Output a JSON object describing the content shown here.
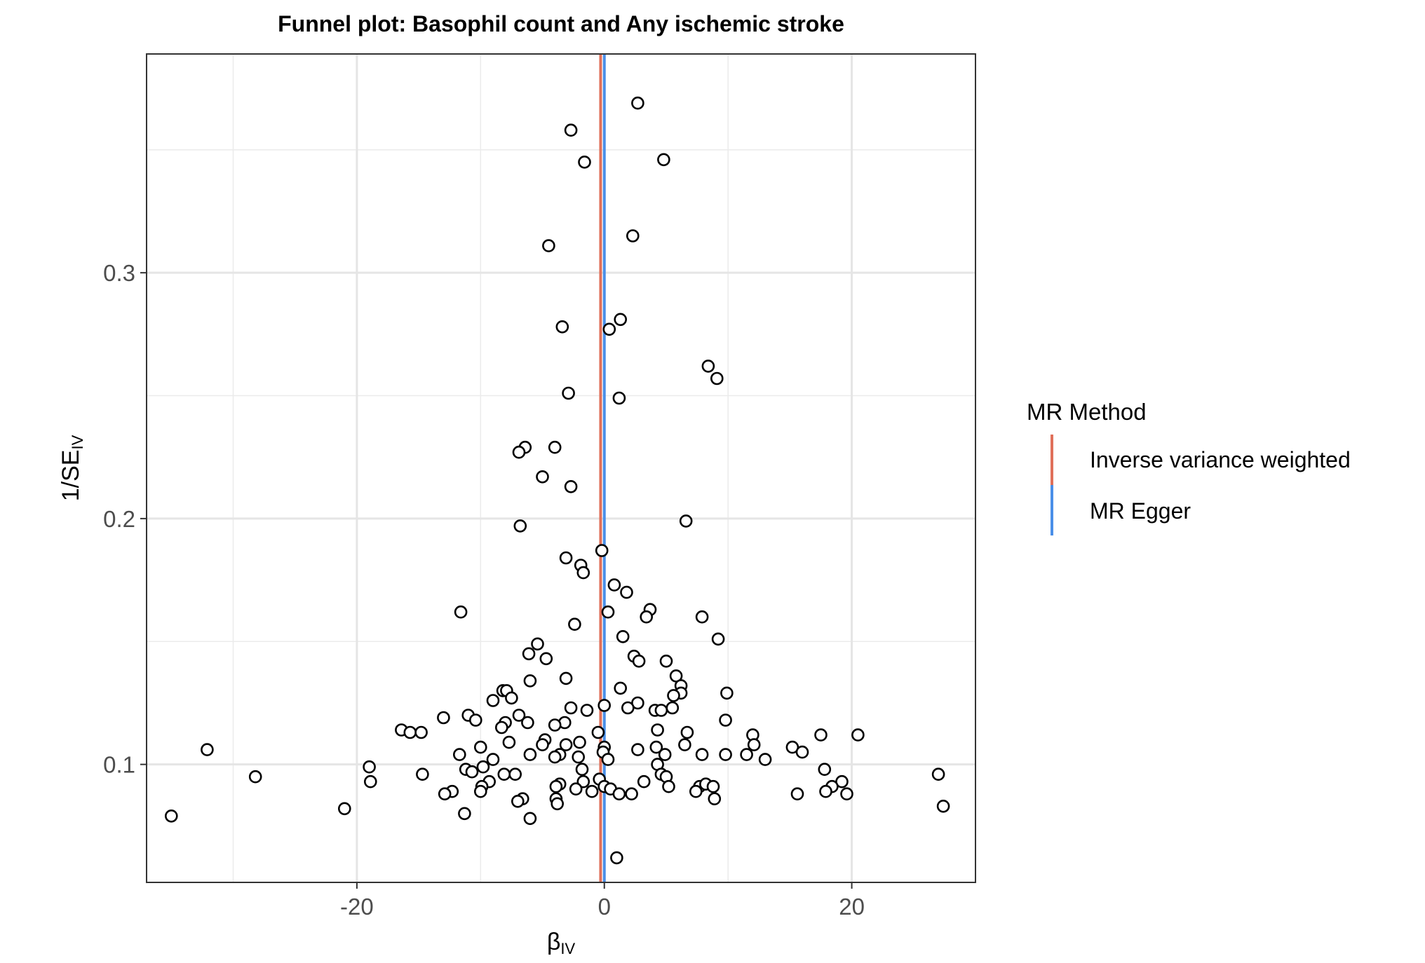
{
  "chart_data": {
    "type": "scatter",
    "title": "Funnel plot: Basophil count and Any ischemic stroke",
    "xlabel": {
      "main": "β",
      "sub": "IV"
    },
    "ylabel": {
      "main": "1/SE",
      "sub": "IV"
    },
    "xlim": [
      -37,
      30
    ],
    "ylim": [
      0.052,
      0.389
    ],
    "x_ticks": [
      -20,
      0,
      20
    ],
    "x_tick_labels": [
      "-20",
      "0",
      "20"
    ],
    "y_ticks": [
      0.1,
      0.2,
      0.3
    ],
    "y_tick_labels": [
      "0.1",
      "0.2",
      "0.3"
    ],
    "grid": true,
    "legend": {
      "title": "MR Method",
      "placement": "right",
      "entries": [
        {
          "label": "Inverse variance weighted",
          "color": "#E0705A"
        },
        {
          "label": "MR Egger",
          "color": "#4A8FE8"
        }
      ]
    },
    "vlines": [
      {
        "method": "Inverse variance weighted",
        "x": -0.3,
        "color": "#E0705A"
      },
      {
        "method": "MR Egger",
        "x": 0.0,
        "color": "#4A8FE8"
      }
    ],
    "points": [
      [
        2.7,
        0.369
      ],
      [
        -2.7,
        0.358
      ],
      [
        -1.6,
        0.345
      ],
      [
        4.8,
        0.346
      ],
      [
        -4.5,
        0.311
      ],
      [
        2.3,
        0.315
      ],
      [
        -3.4,
        0.278
      ],
      [
        1.3,
        0.281
      ],
      [
        0.4,
        0.277
      ],
      [
        8.4,
        0.262
      ],
      [
        9.1,
        0.257
      ],
      [
        -2.9,
        0.251
      ],
      [
        1.2,
        0.249
      ],
      [
        -6.4,
        0.229
      ],
      [
        -6.9,
        0.227
      ],
      [
        -4.0,
        0.229
      ],
      [
        -5.0,
        0.217
      ],
      [
        -2.7,
        0.213
      ],
      [
        6.6,
        0.199
      ],
      [
        -6.8,
        0.197
      ],
      [
        -0.2,
        0.187
      ],
      [
        -3.1,
        0.184
      ],
      [
        -1.9,
        0.181
      ],
      [
        -1.7,
        0.178
      ],
      [
        0.8,
        0.173
      ],
      [
        1.8,
        0.17
      ],
      [
        3.7,
        0.163
      ],
      [
        -11.6,
        0.162
      ],
      [
        0.3,
        0.162
      ],
      [
        7.9,
        0.16
      ],
      [
        3.4,
        0.16
      ],
      [
        -2.4,
        0.157
      ],
      [
        1.5,
        0.152
      ],
      [
        9.2,
        0.151
      ],
      [
        -5.4,
        0.149
      ],
      [
        -6.1,
        0.145
      ],
      [
        -4.7,
        0.143
      ],
      [
        2.4,
        0.144
      ],
      [
        2.8,
        0.142
      ],
      [
        5.0,
        0.142
      ],
      [
        -3.1,
        0.135
      ],
      [
        -6.0,
        0.134
      ],
      [
        5.8,
        0.136
      ],
      [
        6.2,
        0.132
      ],
      [
        1.3,
        0.131
      ],
      [
        6.2,
        0.129
      ],
      [
        5.6,
        0.128
      ],
      [
        9.9,
        0.129
      ],
      [
        -8.2,
        0.13
      ],
      [
        -7.9,
        0.13
      ],
      [
        -7.5,
        0.127
      ],
      [
        -9.0,
        0.126
      ],
      [
        0.0,
        0.124
      ],
      [
        2.7,
        0.125
      ],
      [
        5.5,
        0.123
      ],
      [
        4.1,
        0.122
      ],
      [
        1.9,
        0.123
      ],
      [
        -1.4,
        0.122
      ],
      [
        -2.7,
        0.123
      ],
      [
        4.6,
        0.122
      ],
      [
        -6.9,
        0.12
      ],
      [
        -11.0,
        0.12
      ],
      [
        -13.0,
        0.119
      ],
      [
        -10.4,
        0.118
      ],
      [
        -8.0,
        0.117
      ],
      [
        -3.2,
        0.117
      ],
      [
        -4.0,
        0.116
      ],
      [
        -6.2,
        0.117
      ],
      [
        9.8,
        0.118
      ],
      [
        -8.3,
        0.115
      ],
      [
        -16.4,
        0.114
      ],
      [
        -15.7,
        0.113
      ],
      [
        -14.8,
        0.113
      ],
      [
        6.7,
        0.113
      ],
      [
        4.3,
        0.114
      ],
      [
        12.0,
        0.112
      ],
      [
        17.5,
        0.112
      ],
      [
        20.5,
        0.112
      ],
      [
        -0.5,
        0.113
      ],
      [
        -7.7,
        0.109
      ],
      [
        -4.8,
        0.11
      ],
      [
        -2.0,
        0.109
      ],
      [
        -5.0,
        0.108
      ],
      [
        -3.1,
        0.108
      ],
      [
        0.0,
        0.107
      ],
      [
        2.7,
        0.106
      ],
      [
        4.2,
        0.107
      ],
      [
        6.5,
        0.108
      ],
      [
        12.1,
        0.108
      ],
      [
        15.2,
        0.107
      ],
      [
        -32.1,
        0.106
      ],
      [
        -10.0,
        0.107
      ],
      [
        -0.1,
        0.105
      ],
      [
        4.9,
        0.104
      ],
      [
        7.9,
        0.104
      ],
      [
        9.8,
        0.104
      ],
      [
        11.5,
        0.104
      ],
      [
        16.0,
        0.105
      ],
      [
        -11.7,
        0.104
      ],
      [
        -3.6,
        0.104
      ],
      [
        -4.0,
        0.103
      ],
      [
        -6.0,
        0.104
      ],
      [
        -2.1,
        0.103
      ],
      [
        0.3,
        0.102
      ],
      [
        -9.0,
        0.102
      ],
      [
        13.0,
        0.102
      ],
      [
        4.3,
        0.1
      ],
      [
        -19.0,
        0.099
      ],
      [
        -9.8,
        0.099
      ],
      [
        -11.2,
        0.098
      ],
      [
        -10.7,
        0.097
      ],
      [
        -1.8,
        0.098
      ],
      [
        17.8,
        0.098
      ],
      [
        -28.2,
        0.095
      ],
      [
        -14.7,
        0.096
      ],
      [
        -8.1,
        0.096
      ],
      [
        -7.2,
        0.096
      ],
      [
        4.6,
        0.096
      ],
      [
        5.0,
        0.095
      ],
      [
        27.0,
        0.096
      ],
      [
        -18.9,
        0.093
      ],
      [
        -9.3,
        0.093
      ],
      [
        -0.4,
        0.094
      ],
      [
        3.2,
        0.093
      ],
      [
        -1.7,
        0.093
      ],
      [
        -3.6,
        0.092
      ],
      [
        -3.9,
        0.091
      ],
      [
        0.0,
        0.091
      ],
      [
        5.2,
        0.091
      ],
      [
        7.7,
        0.091
      ],
      [
        8.2,
        0.092
      ],
      [
        8.8,
        0.091
      ],
      [
        19.2,
        0.093
      ],
      [
        18.4,
        0.091
      ],
      [
        -9.9,
        0.091
      ],
      [
        -10.0,
        0.089
      ],
      [
        -2.3,
        0.09
      ],
      [
        -1.0,
        0.089
      ],
      [
        0.5,
        0.09
      ],
      [
        7.4,
        0.089
      ],
      [
        17.9,
        0.089
      ],
      [
        -12.3,
        0.089
      ],
      [
        -12.9,
        0.088
      ],
      [
        1.2,
        0.088
      ],
      [
        2.2,
        0.088
      ],
      [
        15.6,
        0.088
      ],
      [
        19.6,
        0.088
      ],
      [
        -6.6,
        0.086
      ],
      [
        -7.0,
        0.085
      ],
      [
        -3.9,
        0.086
      ],
      [
        -3.8,
        0.084
      ],
      [
        8.9,
        0.086
      ],
      [
        27.4,
        0.083
      ],
      [
        -21.0,
        0.082
      ],
      [
        -11.3,
        0.08
      ],
      [
        -6.0,
        0.078
      ],
      [
        -35.0,
        0.079
      ],
      [
        1.0,
        0.062
      ]
    ]
  }
}
